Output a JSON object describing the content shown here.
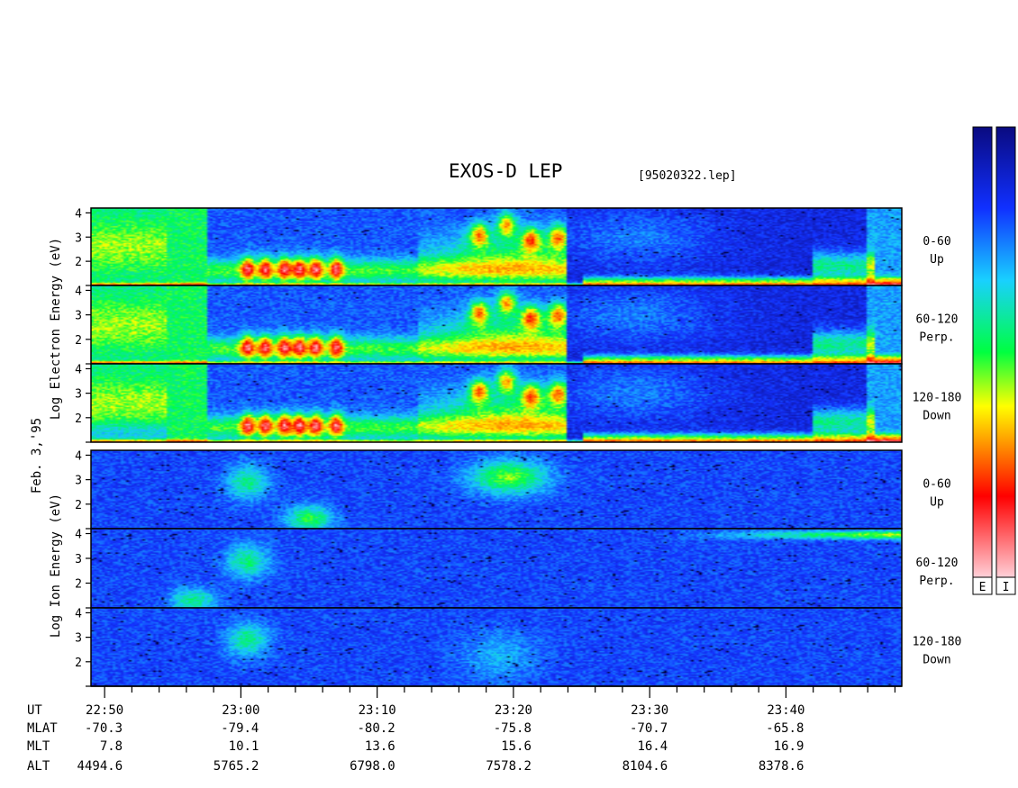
{
  "header": {
    "title": "EXOS-D LEP",
    "file": "[95020322.lep]"
  },
  "date_label": "Feb. 3,'95",
  "group_labels": {
    "electron": "Log Electron Energy (eV)",
    "ion": "Log Ion Energy (eV)"
  },
  "colorbar": {
    "labels": [
      "E",
      "I"
    ],
    "colors_top_to_bottom": [
      "#0a0a80",
      "#1030ff",
      "#19d0ff",
      "#00ff40",
      "#ffff00",
      "#ff8000",
      "#ff0000",
      "#ffd0d8"
    ]
  },
  "ephemeris": {
    "row_labels": [
      "UT",
      "MLAT",
      "MLT",
      "ALT"
    ],
    "columns": [
      {
        "UT": "22:50",
        "MLAT": "-70.3",
        "MLT": "7.8",
        "ALT": "4494.6"
      },
      {
        "UT": "23:00",
        "MLAT": "-79.4",
        "MLT": "10.1",
        "ALT": "5765.2"
      },
      {
        "UT": "23:10",
        "MLAT": "-80.2",
        "MLT": "13.6",
        "ALT": "6798.0"
      },
      {
        "UT": "23:20",
        "MLAT": "-75.8",
        "MLT": "15.6",
        "ALT": "7578.2"
      },
      {
        "UT": "23:30",
        "MLAT": "-70.7",
        "MLT": "16.4",
        "ALT": "8104.6"
      },
      {
        "UT": "23:40",
        "MLAT": "-65.8",
        "MLT": "16.9",
        "ALT": "8378.6"
      }
    ]
  },
  "chart_data": {
    "type": "heatmap",
    "title": "EXOS-D LEP",
    "x_axis": {
      "label": "UT",
      "ticks": [
        "22:50",
        "23:00",
        "23:10",
        "23:20",
        "23:30",
        "23:40"
      ],
      "range_minutes_after_2249": [
        0,
        59.5
      ],
      "minor_tick_interval_min": 2
    },
    "y_axis": {
      "ticks": [
        2,
        3,
        4
      ],
      "range": [
        1,
        4.2
      ]
    },
    "scale": "log",
    "panels": [
      {
        "species": "Electron",
        "pitch_angle": "0-60",
        "direction": "Up"
      },
      {
        "species": "Electron",
        "pitch_angle": "60-120",
        "direction": "Perp."
      },
      {
        "species": "Electron",
        "pitch_angle": "120-180",
        "direction": "Down"
      },
      {
        "species": "Ion",
        "pitch_angle": "0-60",
        "direction": "Up"
      },
      {
        "species": "Ion",
        "pitch_angle": "60-120",
        "direction": "Perp."
      },
      {
        "species": "Ion",
        "pitch_angle": "120-180",
        "direction": "Down"
      }
    ]
  }
}
